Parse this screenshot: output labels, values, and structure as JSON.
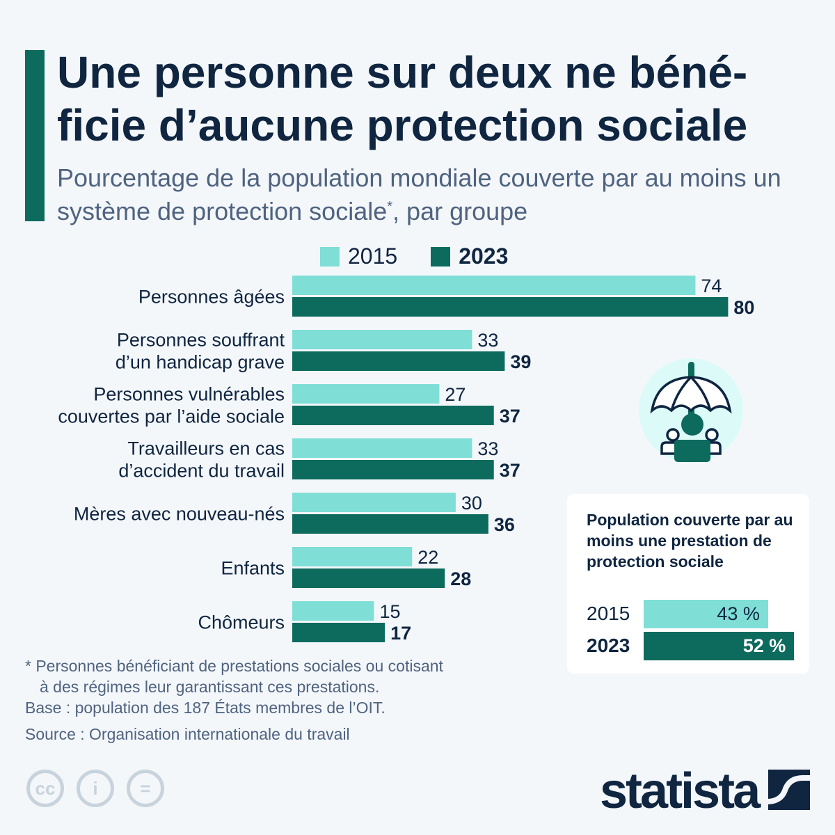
{
  "title": "Une personne sur deux ne béné-ficie d’aucune protection sociale",
  "subtitle": "Pourcentage de la population mondiale couverte par au moins un système de protection sociale",
  "subtitle_mark": "*",
  "subtitle_end": ", par groupe",
  "colors": {
    "s2015": "#7fded6",
    "s2023": "#0d6b5e",
    "text": "#0f2540",
    "muted": "#4f6380"
  },
  "chart_data": {
    "type": "bar",
    "orientation": "horizontal",
    "categories": [
      "Personnes âgées",
      "Personnes souffrant d’un handicap grave",
      "Personnes vulnérables couvertes par l’aide sociale",
      "Travailleurs en cas d’accident du travail",
      "Mères avec nouveau-nés",
      "Enfants",
      "Chômeurs"
    ],
    "series": [
      {
        "name": "2015",
        "values": [
          74,
          33,
          27,
          33,
          30,
          22,
          15
        ]
      },
      {
        "name": "2023",
        "values": [
          80,
          39,
          37,
          37,
          36,
          28,
          17
        ]
      }
    ],
    "legend_position": "top",
    "grid": false,
    "xlim": [
      0,
      100
    ]
  },
  "category_lines": [
    [
      "Personnes âgées"
    ],
    [
      "Personnes souffrant",
      "d’un handicap grave"
    ],
    [
      "Personnes vulnérables",
      "couvertes par l’aide sociale"
    ],
    [
      "Travailleurs en cas",
      "d’accident du travail"
    ],
    [
      "Mères avec nouveau-nés"
    ],
    [
      "Enfants"
    ],
    [
      "Chômeurs"
    ]
  ],
  "inset": {
    "title": "Population couverte par au moins une prestation de protection sociale",
    "rows": [
      {
        "year": "2015",
        "value": 43,
        "label": "43 %"
      },
      {
        "year": "2023",
        "value": 52,
        "label": "52 %"
      }
    ]
  },
  "notes": {
    "footnote1": "* Personnes bénéficiant de prestations sociales ou cotisant",
    "footnote2": "à des régimes leur garantissant ces prestations.",
    "base": "Base : population des 187 États membres de l’OIT.",
    "source": "Source : Organisation internationale du travail"
  },
  "icons": [
    "umbrella-people-icon",
    "cc-icon",
    "attribution-icon",
    "no-derivatives-icon",
    "statista-logo"
  ],
  "logo": "statista"
}
